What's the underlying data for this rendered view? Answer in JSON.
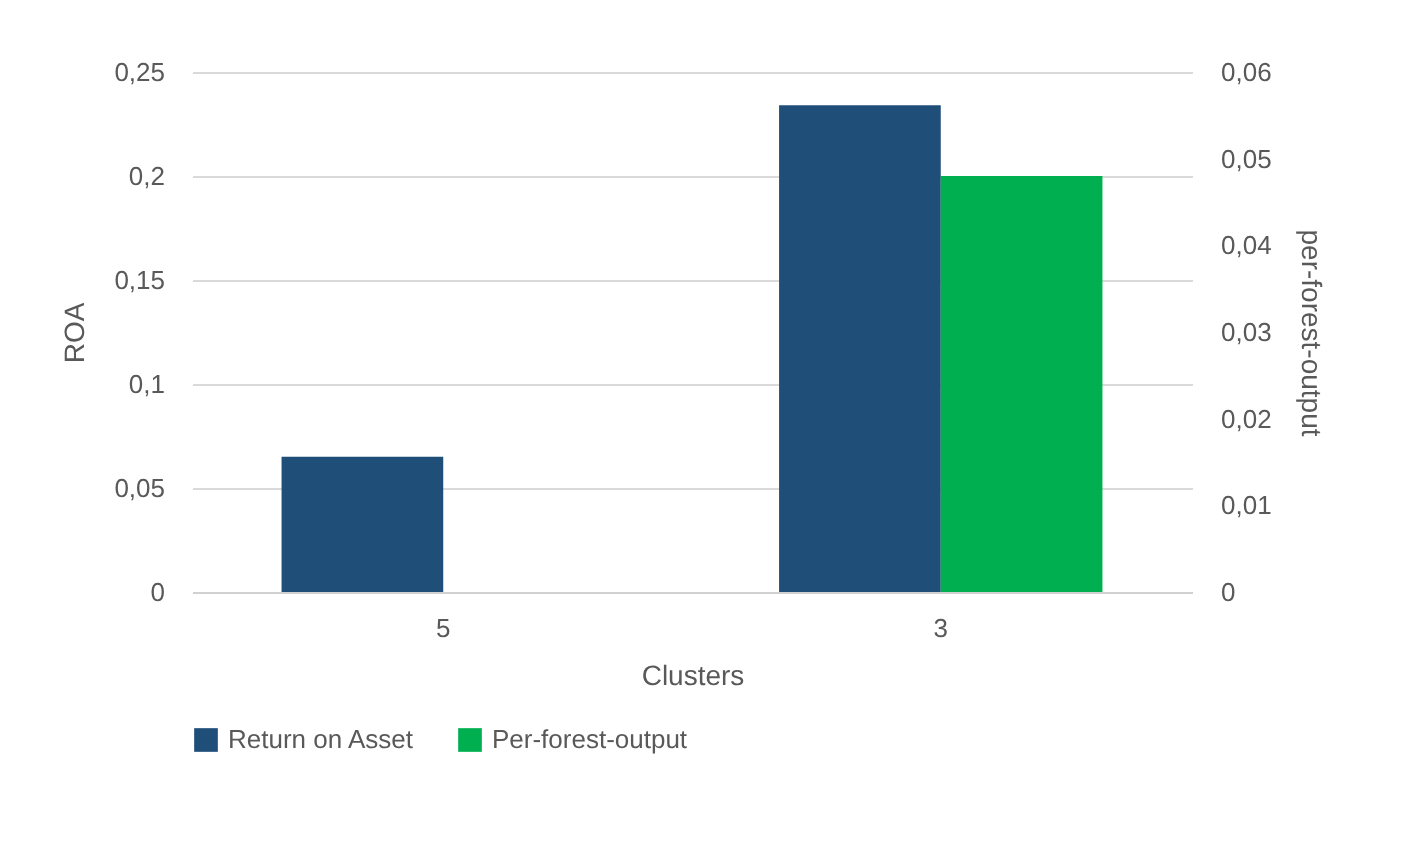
{
  "chart_data": {
    "type": "bar",
    "xlabel": "Clusters",
    "ylabel": "ROA",
    "y2label": "per-forest-output",
    "categories": [
      "5",
      "3"
    ],
    "series": [
      {
        "name": "Return on Asset",
        "color": "#1f4e79",
        "values": [
          0.065,
          0.234
        ]
      },
      {
        "name": "Per-forest-output",
        "color": "#00b050",
        "values": [
          null,
          0.048
        ],
        "axis": "y2"
      }
    ],
    "ylim": [
      0,
      0.25
    ],
    "yticks": [
      {
        "value": 0,
        "label": "0"
      },
      {
        "value": 0.05,
        "label": "0,05"
      },
      {
        "value": 0.1,
        "label": "0,1"
      },
      {
        "value": 0.15,
        "label": "0,15"
      },
      {
        "value": 0.2,
        "label": "0,2"
      },
      {
        "value": 0.25,
        "label": "0,25"
      }
    ],
    "y2lim": [
      0,
      0.06
    ],
    "y2ticks": [
      {
        "value": 0,
        "label": "0"
      },
      {
        "value": 0.01,
        "label": "0,01"
      },
      {
        "value": 0.02,
        "label": "0,02"
      },
      {
        "value": 0.03,
        "label": "0,03"
      },
      {
        "value": 0.04,
        "label": "0,04"
      },
      {
        "value": 0.05,
        "label": "0,05"
      },
      {
        "value": 0.06,
        "label": "0,06"
      }
    ],
    "grid": "y",
    "legend": "bottom"
  }
}
